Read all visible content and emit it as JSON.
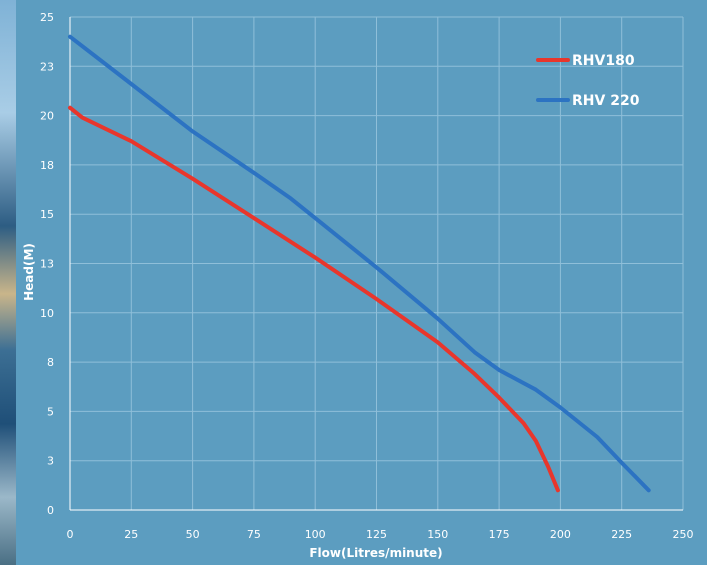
{
  "colors": {
    "background": "#5c9dc0",
    "grid": "#8fbfd9",
    "rhv180": "#e8362c",
    "rhv220": "#2c73c2"
  },
  "chart_data": {
    "type": "line",
    "title": "",
    "xlabel": "Flow(Litres/minute)",
    "ylabel": "Head(M)",
    "xlim": [
      0,
      250
    ],
    "ylim": [
      0,
      25
    ],
    "x_ticks": [
      "0",
      "25",
      "50",
      "75",
      "100",
      "125",
      "150",
      "175",
      "200",
      "225",
      "250"
    ],
    "x_tick_values": [
      0,
      25,
      50,
      75,
      100,
      125,
      150,
      175,
      200,
      225,
      250
    ],
    "y_ticks": [
      "0",
      "3",
      "5",
      "8",
      "10",
      "13",
      "15",
      "18",
      "20",
      "23",
      "25"
    ],
    "y_tick_values": [
      0,
      2.5,
      5,
      7.5,
      10,
      12.5,
      15,
      17.5,
      20,
      22.5,
      25
    ],
    "grid": true,
    "legend_position": "top-right",
    "series": [
      {
        "name": "RHV180",
        "color": "#e8362c",
        "x": [
          0,
          5,
          25,
          50,
          75,
          100,
          125,
          150,
          165,
          175,
          185,
          190,
          195,
          199
        ],
        "y": [
          20.4,
          19.9,
          18.7,
          16.8,
          14.8,
          12.8,
          10.7,
          8.5,
          6.9,
          5.7,
          4.4,
          3.5,
          2.2,
          1.0
        ]
      },
      {
        "name": "RHV 220",
        "color": "#2c73c2",
        "x": [
          0,
          25,
          50,
          75,
          90,
          100,
          125,
          150,
          165,
          175,
          190,
          200,
          215,
          225,
          236
        ],
        "y": [
          24.0,
          21.6,
          19.2,
          17.1,
          15.8,
          14.8,
          12.3,
          9.7,
          8.0,
          7.1,
          6.1,
          5.2,
          3.7,
          2.4,
          1.0
        ]
      }
    ]
  }
}
